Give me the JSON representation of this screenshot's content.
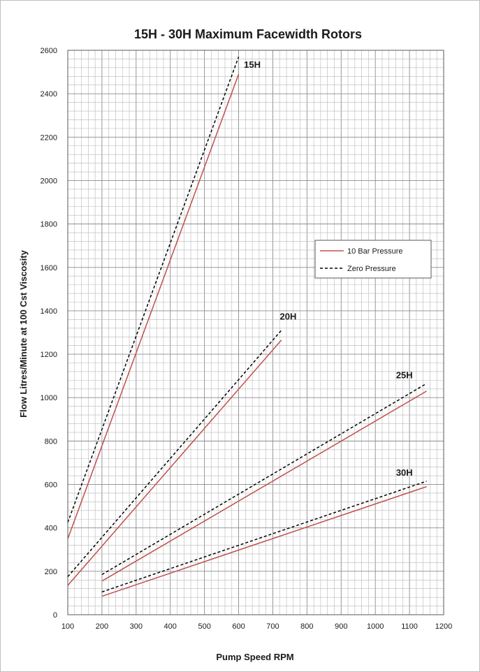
{
  "chart_data": {
    "type": "line",
    "title": "15H - 30H Maximum Facewidth Rotors",
    "xlabel": "Pump Speed RPM",
    "ylabel": "Flow  Litres/Minute at 100 Cst Viscosity",
    "xlim": [
      100,
      1200
    ],
    "ylim": [
      0,
      2600
    ],
    "x_ticks": [
      100,
      200,
      300,
      400,
      500,
      600,
      700,
      800,
      900,
      1000,
      1100,
      1200
    ],
    "y_ticks": [
      0,
      200,
      400,
      600,
      800,
      1000,
      1200,
      1400,
      1600,
      1800,
      2000,
      2200,
      2400,
      2600
    ],
    "grid": true,
    "legend": {
      "placement": "middle-right",
      "entries": [
        {
          "label": "10 Bar Pressure",
          "style": "solid",
          "color": "#c0504d"
        },
        {
          "label": "Zero Pressure",
          "style": "dashed",
          "color": "#000000"
        }
      ]
    },
    "series": [
      {
        "rotor": "15H",
        "pressure": "10 Bar Pressure",
        "x": [
          100,
          600
        ],
        "y": [
          350,
          2490
        ]
      },
      {
        "rotor": "15H",
        "pressure": "Zero Pressure",
        "x": [
          100,
          600
        ],
        "y": [
          425,
          2570
        ]
      },
      {
        "rotor": "20H",
        "pressure": "10 Bar Pressure",
        "x": [
          100,
          725
        ],
        "y": [
          135,
          1265
        ]
      },
      {
        "rotor": "20H",
        "pressure": "Zero Pressure",
        "x": [
          100,
          725
        ],
        "y": [
          175,
          1310
        ]
      },
      {
        "rotor": "25H",
        "pressure": "10 Bar Pressure",
        "x": [
          200,
          1150
        ],
        "y": [
          155,
          1030
        ]
      },
      {
        "rotor": "25H",
        "pressure": "Zero Pressure",
        "x": [
          200,
          1150
        ],
        "y": [
          185,
          1065
        ]
      },
      {
        "rotor": "30H",
        "pressure": "10 Bar Pressure",
        "x": [
          200,
          1150
        ],
        "y": [
          85,
          590
        ]
      },
      {
        "rotor": "30H",
        "pressure": "Zero Pressure",
        "x": [
          200,
          1150
        ],
        "y": [
          105,
          615
        ]
      }
    ],
    "annotations": [
      {
        "text": "15H",
        "x": 640,
        "y": 2520
      },
      {
        "text": "20H",
        "x": 745,
        "y": 1360
      },
      {
        "text": "25H",
        "x": 1085,
        "y": 1090
      },
      {
        "text": "30H",
        "x": 1085,
        "y": 640
      }
    ]
  },
  "colors": {
    "solid_line": "#c0504d",
    "dashed_line": "#000000",
    "grid_minor": "#b8b8b8",
    "grid_major": "#8c8c8c"
  }
}
